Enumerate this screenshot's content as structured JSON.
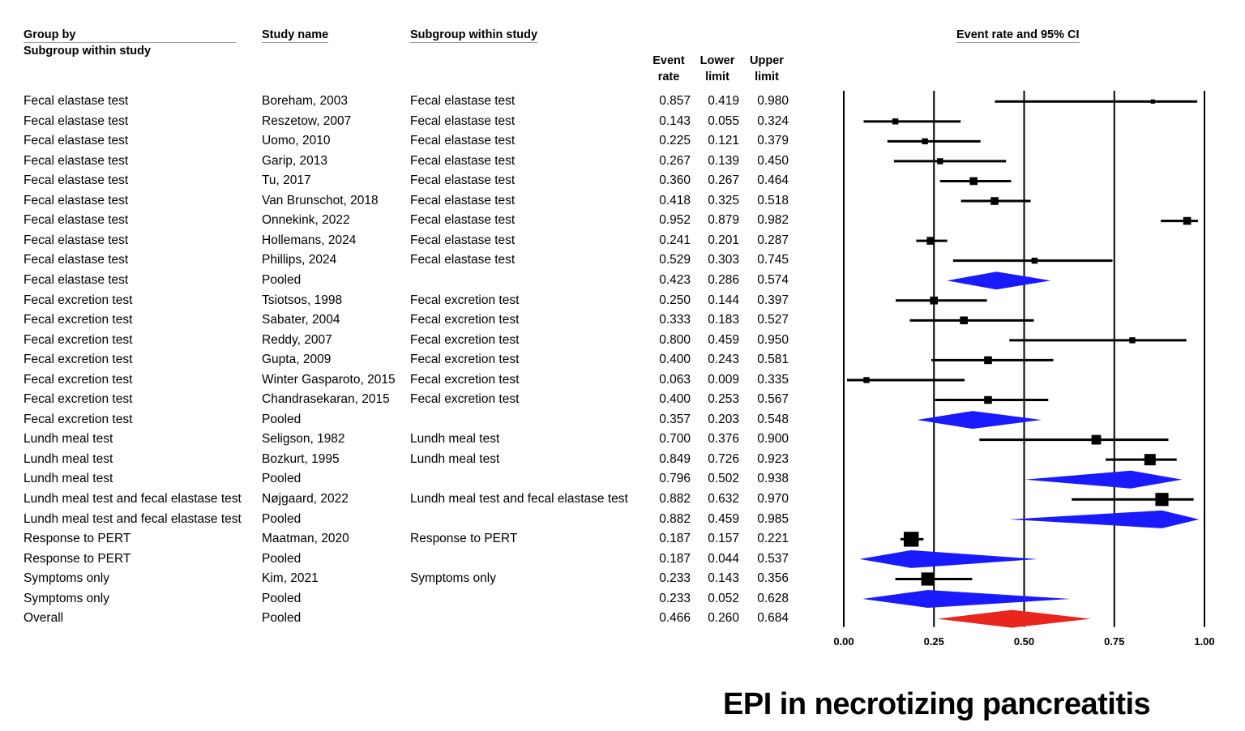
{
  "headers": {
    "group_by": "Group by",
    "group_by_sub": "Subgroup within study",
    "study_name": "Study name",
    "subgroup": "Subgroup within study",
    "ci_title": "Event rate and 95% CI",
    "event_rate_1": "Event",
    "event_rate_2": "rate",
    "lower_1": "Lower",
    "lower_2": "limit",
    "upper_1": "Upper",
    "upper_2": "limit"
  },
  "title": "EPI in necrotizing pancreatitis",
  "colors": {
    "study": "#000000",
    "pooled": "#1a1aff",
    "overall": "#e8261e"
  },
  "chart_data": {
    "type": "forest",
    "xlim": [
      0,
      1
    ],
    "ticks": [
      "0.00",
      "0.25",
      "0.50",
      "0.75",
      "1.00"
    ],
    "rows": [
      {
        "group": "Fecal elastase test",
        "study": "Boreham, 2003",
        "subgroup": "Fecal elastase test",
        "rate": "0.857",
        "lower": "0.419",
        "upper": "0.980",
        "kind": "study",
        "w": 1
      },
      {
        "group": "Fecal elastase test",
        "study": "Reszetow, 2007",
        "subgroup": "Fecal elastase test",
        "rate": "0.143",
        "lower": "0.055",
        "upper": "0.324",
        "kind": "study",
        "w": 2
      },
      {
        "group": "Fecal elastase test",
        "study": "Uomo, 2010",
        "subgroup": "Fecal elastase test",
        "rate": "0.225",
        "lower": "0.121",
        "upper": "0.379",
        "kind": "study",
        "w": 2
      },
      {
        "group": "Fecal elastase test",
        "study": "Garip, 2013",
        "subgroup": "Fecal elastase test",
        "rate": "0.267",
        "lower": "0.139",
        "upper": "0.450",
        "kind": "study",
        "w": 2
      },
      {
        "group": "Fecal elastase test",
        "study": "Tu, 2017",
        "subgroup": "Fecal elastase test",
        "rate": "0.360",
        "lower": "0.267",
        "upper": "0.464",
        "kind": "study",
        "w": 3
      },
      {
        "group": "Fecal elastase test",
        "study": "Van Brunschot, 2018",
        "subgroup": "Fecal elastase test",
        "rate": "0.418",
        "lower": "0.325",
        "upper": "0.518",
        "kind": "study",
        "w": 3
      },
      {
        "group": "Fecal elastase test",
        "study": "Onnekink, 2022",
        "subgroup": "Fecal elastase test",
        "rate": "0.952",
        "lower": "0.879",
        "upper": "0.982",
        "kind": "study",
        "w": 3
      },
      {
        "group": "Fecal elastase test",
        "study": "Hollemans, 2024",
        "subgroup": "Fecal elastase test",
        "rate": "0.241",
        "lower": "0.201",
        "upper": "0.287",
        "kind": "study",
        "w": 3
      },
      {
        "group": "Fecal elastase test",
        "study": "Phillips, 2024",
        "subgroup": "Fecal elastase test",
        "rate": "0.529",
        "lower": "0.303",
        "upper": "0.745",
        "kind": "study",
        "w": 2
      },
      {
        "group": "Fecal elastase test",
        "study": "Pooled",
        "subgroup": "",
        "rate": "0.423",
        "lower": "0.286",
        "upper": "0.574",
        "kind": "pooled"
      },
      {
        "group": "Fecal excretion test",
        "study": "Tsiotsos, 1998",
        "subgroup": "Fecal excretion test",
        "rate": "0.250",
        "lower": "0.144",
        "upper": "0.397",
        "kind": "study",
        "w": 3
      },
      {
        "group": "Fecal excretion test",
        "study": "Sabater, 2004",
        "subgroup": "Fecal excretion test",
        "rate": "0.333",
        "lower": "0.183",
        "upper": "0.527",
        "kind": "study",
        "w": 3
      },
      {
        "group": "Fecal excretion test",
        "study": "Reddy, 2007",
        "subgroup": "Fecal excretion test",
        "rate": "0.800",
        "lower": "0.459",
        "upper": "0.950",
        "kind": "study",
        "w": 2
      },
      {
        "group": "Fecal excretion test",
        "study": "Gupta, 2009",
        "subgroup": "Fecal excretion test",
        "rate": "0.400",
        "lower": "0.243",
        "upper": "0.581",
        "kind": "study",
        "w": 3
      },
      {
        "group": "Fecal excretion test",
        "study": "Winter Gasparoto, 2015",
        "subgroup": "Fecal excretion test",
        "rate": "0.063",
        "lower": "0.009",
        "upper": "0.335",
        "kind": "study",
        "w": 2
      },
      {
        "group": "Fecal excretion test",
        "study": "Chandrasekaran, 2015",
        "subgroup": "Fecal excretion test",
        "rate": "0.400",
        "lower": "0.253",
        "upper": "0.567",
        "kind": "study",
        "w": 3
      },
      {
        "group": "Fecal excretion test",
        "study": "Pooled",
        "subgroup": "",
        "rate": "0.357",
        "lower": "0.203",
        "upper": "0.548",
        "kind": "pooled"
      },
      {
        "group": "Lundh meal test",
        "study": "Seligson, 1982",
        "subgroup": "Lundh meal test",
        "rate": "0.700",
        "lower": "0.376",
        "upper": "0.900",
        "kind": "study",
        "w": 4
      },
      {
        "group": "Lundh meal test",
        "study": "Bozkurt, 1995",
        "subgroup": "Lundh meal test",
        "rate": "0.849",
        "lower": "0.726",
        "upper": "0.923",
        "kind": "study",
        "w": 5
      },
      {
        "group": "Lundh meal test",
        "study": "Pooled",
        "subgroup": "",
        "rate": "0.796",
        "lower": "0.502",
        "upper": "0.938",
        "kind": "pooled"
      },
      {
        "group": "Lundh meal test and fecal elastase test",
        "study": "Nøjgaard, 2022",
        "subgroup": "Lundh meal test and fecal elastase test",
        "rate": "0.882",
        "lower": "0.632",
        "upper": "0.970",
        "kind": "study",
        "w": 6
      },
      {
        "group": "Lundh meal test and fecal elastase test",
        "study": "Pooled",
        "subgroup": "",
        "rate": "0.882",
        "lower": "0.459",
        "upper": "0.985",
        "kind": "pooled"
      },
      {
        "group": "Response to PERT",
        "study": "Maatman, 2020",
        "subgroup": "Response to PERT",
        "rate": "0.187",
        "lower": "0.157",
        "upper": "0.221",
        "kind": "study",
        "w": 7
      },
      {
        "group": "Response to PERT",
        "study": "Pooled",
        "subgroup": "",
        "rate": "0.187",
        "lower": "0.044",
        "upper": "0.537",
        "kind": "pooled"
      },
      {
        "group": "Symptoms only",
        "study": "Kim, 2021",
        "subgroup": "Symptoms only",
        "rate": "0.233",
        "lower": "0.143",
        "upper": "0.356",
        "kind": "study",
        "w": 6
      },
      {
        "group": "Symptoms only",
        "study": "Pooled",
        "subgroup": "",
        "rate": "0.233",
        "lower": "0.052",
        "upper": "0.628",
        "kind": "pooled"
      },
      {
        "group": "Overall",
        "study": "Pooled",
        "subgroup": "",
        "rate": "0.466",
        "lower": "0.260",
        "upper": "0.684",
        "kind": "overall"
      }
    ]
  }
}
